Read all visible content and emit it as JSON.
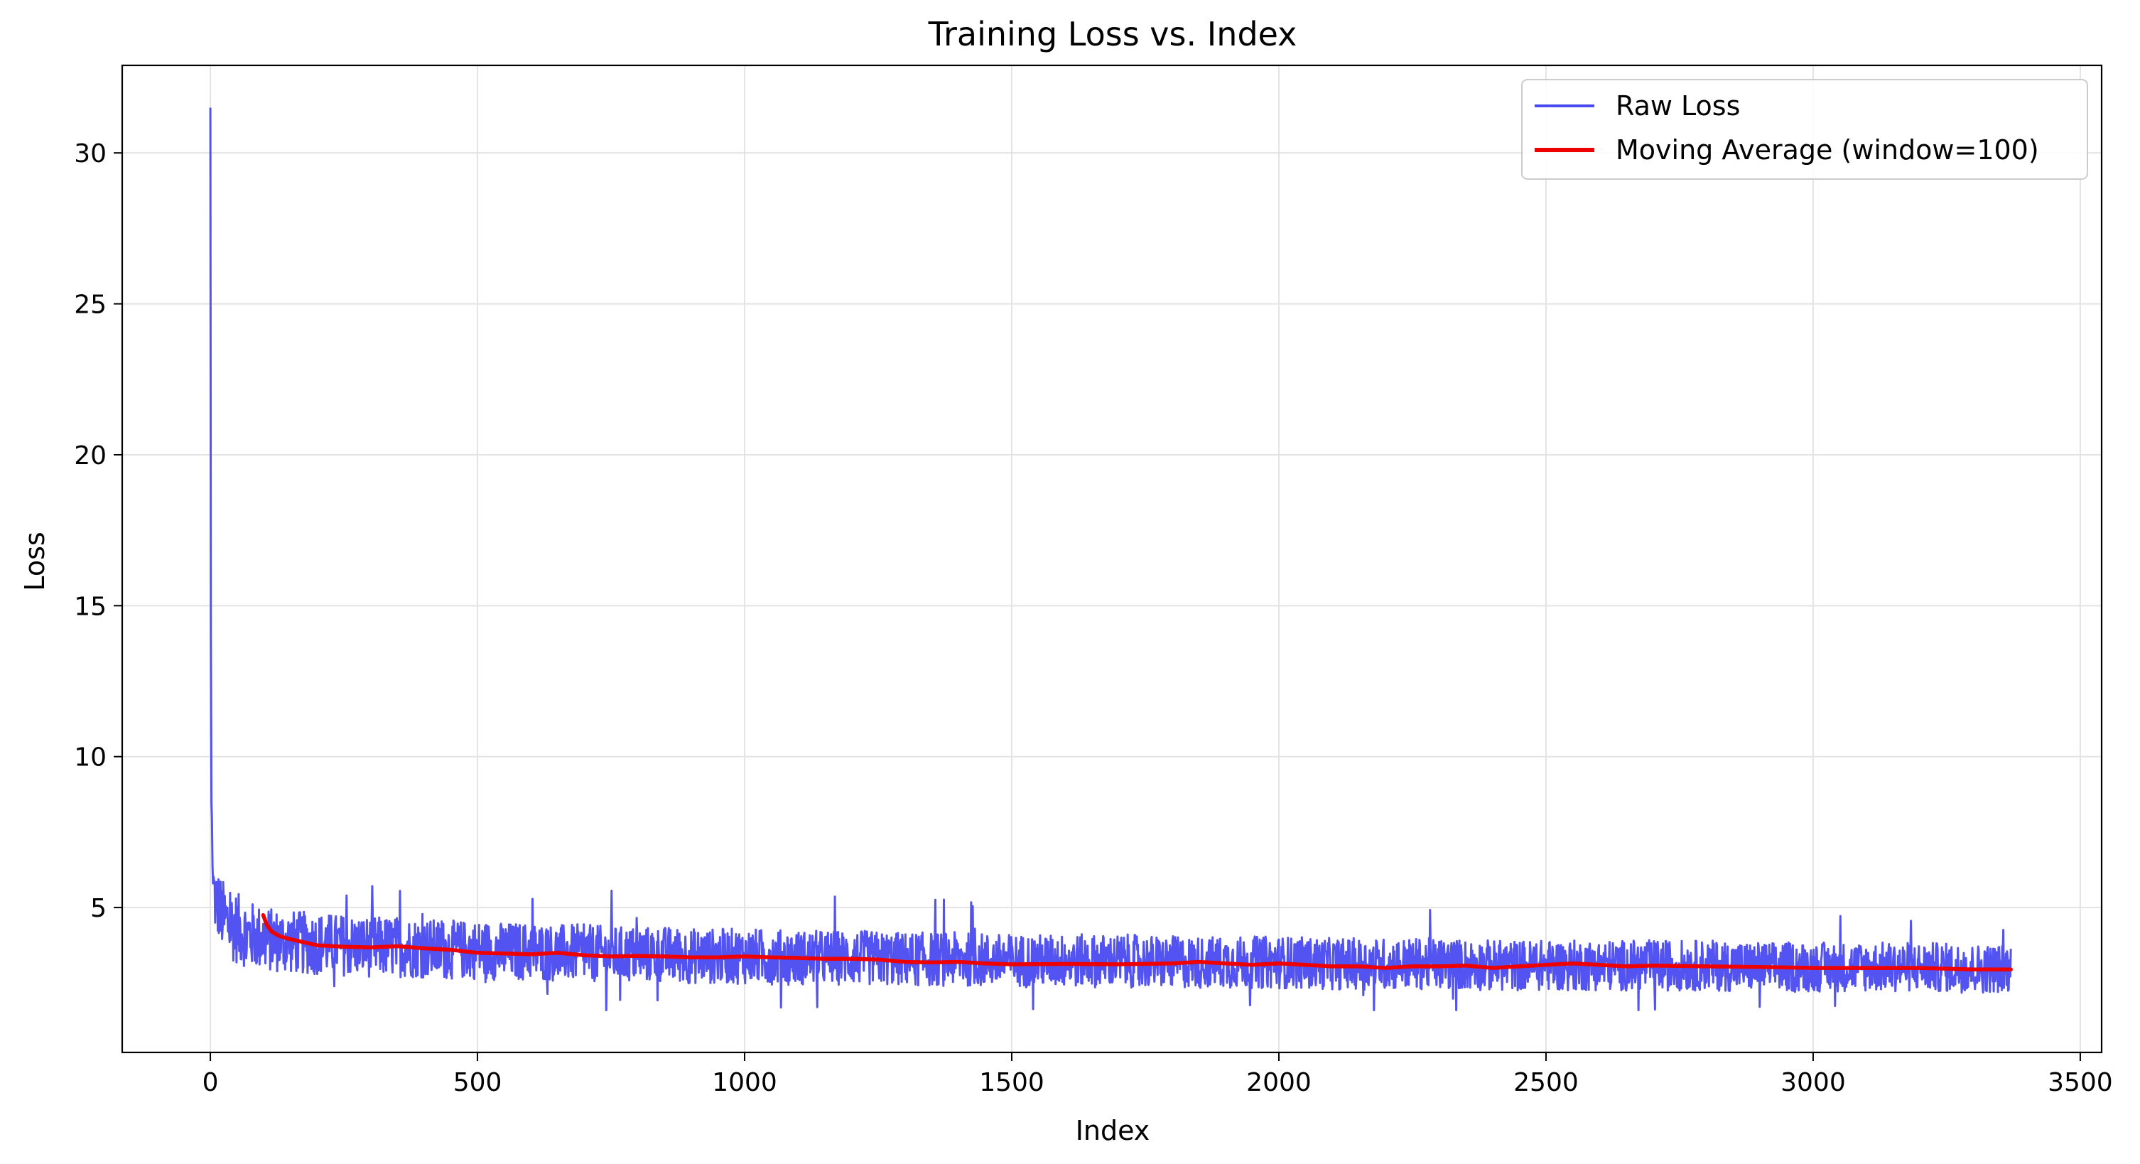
{
  "chart_data": {
    "type": "line",
    "title": "Training Loss vs. Index",
    "xlabel": "Index",
    "ylabel": "Loss",
    "xlim": [
      -165,
      3540
    ],
    "ylim": [
      0.2,
      32.9
    ],
    "xticks": [
      0,
      500,
      1000,
      1500,
      2000,
      2500,
      3000,
      3500
    ],
    "yticks": [
      5,
      10,
      15,
      20,
      25,
      30
    ],
    "grid": true,
    "legend_position": "top-right",
    "series": [
      {
        "name": "Raw Loss",
        "color": "#4a4af0",
        "x": [
          0,
          1,
          2,
          3,
          4,
          5,
          6,
          8,
          10,
          12,
          15,
          20,
          25,
          30,
          35,
          40,
          50,
          60,
          70,
          80,
          90,
          100,
          120,
          150,
          200,
          250,
          300,
          350,
          400,
          450,
          500,
          550,
          600,
          650,
          700,
          750,
          800,
          850,
          900,
          950,
          1000,
          1100,
          1200,
          1300,
          1400,
          1500,
          1600,
          1700,
          1800,
          1900,
          2000,
          2100,
          2200,
          2300,
          2400,
          2500,
          2600,
          2700,
          2800,
          2900,
          3000,
          3100,
          3200,
          3300,
          3370
        ],
        "y": [
          31.5,
          14,
          8.5,
          7.9,
          6.4,
          5.8,
          5.4,
          5.2,
          5.0,
          4.9,
          4.8,
          4.6,
          4.5,
          4.4,
          4.35,
          4.3,
          4.2,
          4.1,
          4.0,
          3.95,
          3.9,
          3.85,
          3.8,
          3.75,
          3.7,
          3.65,
          3.6,
          3.6,
          3.55,
          3.5,
          3.5,
          3.45,
          3.45,
          3.4,
          3.4,
          3.35,
          3.35,
          3.35,
          3.3,
          3.3,
          3.3,
          3.25,
          3.25,
          3.2,
          3.2,
          3.15,
          3.15,
          3.15,
          3.1,
          3.1,
          3.1,
          3.05,
          3.05,
          3.05,
          3.0,
          3.0,
          3.0,
          3.0,
          3.0,
          2.95,
          2.95,
          2.95,
          2.95,
          2.9,
          2.9
        ],
        "noise_band": [
          1.6,
          6.7
        ]
      },
      {
        "name": "Moving Average (window=100)",
        "color": "#ee0000",
        "x": [
          99,
          105,
          115,
          130,
          150,
          175,
          200,
          250,
          300,
          350,
          400,
          450,
          500,
          550,
          600,
          650,
          700,
          750,
          800,
          850,
          900,
          950,
          1000,
          1050,
          1100,
          1150,
          1200,
          1250,
          1300,
          1350,
          1400,
          1450,
          1500,
          1600,
          1700,
          1800,
          1850,
          1900,
          1950,
          2000,
          2050,
          2100,
          2150,
          2200,
          2250,
          2300,
          2350,
          2400,
          2450,
          2500,
          2550,
          2600,
          2650,
          2700,
          2800,
          2900,
          3000,
          3100,
          3200,
          3300,
          3370
        ],
        "y": [
          4.75,
          4.45,
          4.2,
          4.05,
          3.95,
          3.85,
          3.75,
          3.7,
          3.68,
          3.72,
          3.65,
          3.6,
          3.5,
          3.48,
          3.45,
          3.5,
          3.42,
          3.38,
          3.4,
          3.38,
          3.35,
          3.35,
          3.38,
          3.35,
          3.33,
          3.3,
          3.3,
          3.28,
          3.2,
          3.18,
          3.2,
          3.15,
          3.12,
          3.13,
          3.12,
          3.15,
          3.2,
          3.15,
          3.1,
          3.15,
          3.1,
          3.05,
          3.05,
          3.0,
          3.05,
          3.05,
          3.08,
          3.0,
          3.05,
          3.1,
          3.15,
          3.1,
          3.05,
          3.08,
          3.05,
          3.03,
          3.0,
          3.0,
          3.0,
          2.95,
          2.95
        ]
      }
    ]
  }
}
